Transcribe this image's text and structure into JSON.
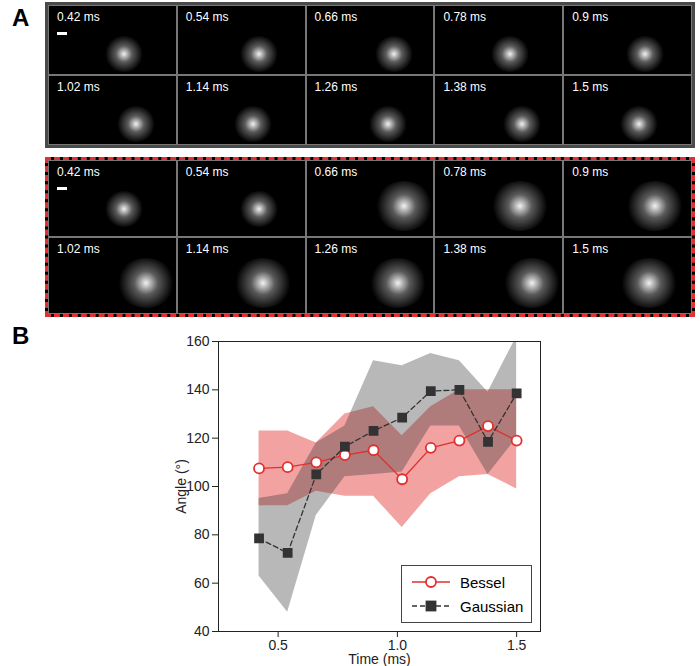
{
  "figure": {
    "panel_labels": [
      "A",
      "B"
    ],
    "image_panels": [
      {
        "times": [
          "0.42 ms",
          "0.54 ms",
          "0.66 ms",
          "0.78 ms",
          "0.9 ms",
          "1.02 ms",
          "1.14 ms",
          "1.26 ms",
          "1.38 ms",
          "1.5 ms"
        ]
      },
      {
        "times": [
          "0.42 ms",
          "0.54 ms",
          "0.66 ms",
          "0.78 ms",
          "0.9 ms",
          "1.02 ms",
          "1.14 ms",
          "1.26 ms",
          "1.38 ms",
          "1.5 ms"
        ]
      }
    ]
  },
  "chart_data": {
    "type": "line",
    "x_label": "Time (ms)",
    "y_label": "Angle (°)",
    "x": [
      0.42,
      0.54,
      0.66,
      0.78,
      0.9,
      1.02,
      1.14,
      1.26,
      1.38,
      1.5
    ],
    "xlim": [
      0.25,
      1.6
    ],
    "xticks": [
      0.5,
      1,
      1.5
    ],
    "ylim": [
      40,
      160
    ],
    "yticks": [
      40,
      60,
      80,
      100,
      120,
      140,
      160
    ],
    "grid": false,
    "legend": "lower right",
    "series": [
      {
        "name": "Bessel",
        "color": "#e0302f",
        "marker": "circle",
        "line_style": "solid",
        "values": [
          107.5,
          108,
          110,
          113,
          115,
          103,
          116,
          119,
          125,
          119
        ],
        "lower": [
          92,
          92,
          98,
          96,
          96,
          83,
          97,
          104,
          105,
          99
        ],
        "upper": [
          123,
          123,
          118,
          130,
          133,
          121,
          133,
          140,
          140,
          140
        ]
      },
      {
        "name": "Gaussian",
        "color": "#333333",
        "marker": "square",
        "line_style": "dashed",
        "values": [
          78.5,
          72.5,
          105,
          116.5,
          123,
          128.5,
          139.5,
          140,
          118.5,
          138.5
        ],
        "lower": [
          63,
          48,
          88,
          104,
          105,
          106,
          125,
          125,
          105,
          120
        ],
        "upper": [
          95,
          97,
          118,
          125,
          152,
          150,
          155,
          152,
          139,
          162
        ]
      }
    ]
  }
}
